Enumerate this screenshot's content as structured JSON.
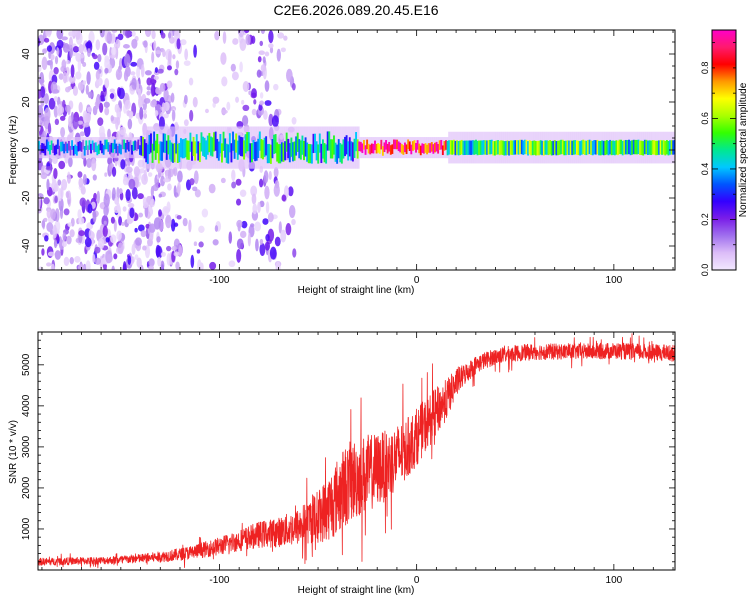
{
  "title": "C2E6.2026.089.20.45.E16",
  "colors": {
    "snr_line": "#ee2222",
    "frame": "#000000",
    "background": "#ffffff"
  },
  "chart_data": [
    {
      "type": "heatmap",
      "name": "spectrogram",
      "xlabel": "Height of straight line (km)",
      "ylabel": "Frequency (Hz)",
      "xlim": [
        -192,
        131
      ],
      "ylim": [
        -50,
        50
      ],
      "xticks": [
        -100,
        0,
        100
      ],
      "xtick_labels": [
        "-100",
        "0",
        "100"
      ],
      "yticks": [
        -40,
        -20,
        0,
        20,
        40
      ],
      "ytick_labels": [
        "-40",
        "-20",
        "0",
        "20",
        "40"
      ],
      "colorbar": {
        "label": "Normalized spectral amplitude",
        "range": [
          0.0,
          0.95
        ],
        "ticks": [
          0.0,
          0.2,
          0.4,
          0.6,
          0.8
        ],
        "tick_labels": [
          "0.0",
          "0.2",
          "0.4",
          "0.6",
          "0.8"
        ],
        "stops": [
          "#f2e8ff",
          "#dcbdf8",
          "#a070ee",
          "#7a1ee8",
          "#3300ff",
          "#0055ff",
          "#00c8ff",
          "#00e890",
          "#33ff00",
          "#aaff00",
          "#ffff00",
          "#ff9900",
          "#ff0000",
          "#ff1a6e",
          "#ff00c8"
        ]
      },
      "band": {
        "center_frequency_hz": 1,
        "segments": [
          {
            "x_from": -192,
            "x_to": -140,
            "half_width_hz": 2,
            "amplitude": 0.3
          },
          {
            "x_from": -140,
            "x_to": -80,
            "half_width_hz": 4,
            "amplitude": 0.45
          },
          {
            "x_from": -80,
            "x_to": -30,
            "half_width_hz": 4,
            "amplitude": 0.42
          },
          {
            "x_from": -30,
            "x_to": 15,
            "half_width_hz": 2,
            "amplitude": 0.85
          },
          {
            "x_from": 15,
            "x_to": 131,
            "half_width_hz": 3,
            "amplitude": 0.45
          }
        ]
      }
    },
    {
      "type": "line",
      "name": "snr",
      "xlabel": "Height of straight line (km)",
      "ylabel": "SNR (10 * v/v)",
      "xlim": [
        -192,
        131
      ],
      "ylim": [
        0,
        5800
      ],
      "xticks": [
        -100,
        0,
        100
      ],
      "xtick_labels": [
        "-100",
        "0",
        "100"
      ],
      "yticks": [
        1000,
        2000,
        3000,
        4000,
        5000
      ],
      "ytick_labels": [
        "1000",
        "2000",
        "3000",
        "4000",
        "5000"
      ],
      "series": [
        {
          "name": "SNR",
          "color": "#ee2222",
          "x": [
            -192,
            -180,
            -170,
            -160,
            -150,
            -140,
            -130,
            -120,
            -110,
            -100,
            -90,
            -80,
            -70,
            -60,
            -50,
            -45,
            -40,
            -35,
            -30,
            -25,
            -20,
            -15,
            -10,
            -5,
            0,
            5,
            10,
            15,
            20,
            25,
            30,
            35,
            40,
            50,
            60,
            80,
            100,
            120,
            131
          ],
          "y": [
            200,
            210,
            220,
            230,
            250,
            280,
            320,
            380,
            470,
            580,
            720,
            860,
            920,
            1050,
            1300,
            1500,
            1800,
            2100,
            2250,
            2350,
            2450,
            2550,
            2750,
            2950,
            3250,
            3550,
            3850,
            4150,
            4550,
            4800,
            5000,
            5120,
            5200,
            5280,
            5320,
            5320,
            5340,
            5300,
            5280
          ],
          "noise": [
            90,
            90,
            90,
            90,
            100,
            110,
            130,
            150,
            180,
            220,
            260,
            320,
            360,
            450,
            650,
            800,
            950,
            1000,
            1000,
            950,
            900,
            850,
            800,
            750,
            700,
            650,
            600,
            500,
            350,
            250,
            220,
            200,
            200,
            200,
            200,
            190,
            200,
            200,
            200
          ]
        }
      ]
    }
  ]
}
